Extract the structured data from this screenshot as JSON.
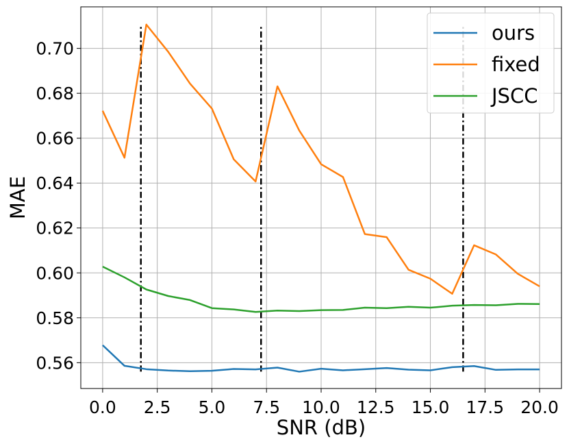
{
  "chart_data": {
    "type": "line",
    "xlabel": "SNR (dB)",
    "ylabel": "MAE",
    "xlim": [
      -1.0,
      21.0
    ],
    "ylim": [
      0.5485,
      0.7185
    ],
    "grid": true,
    "legend_position": "top-right",
    "xticks": [
      0,
      2.5,
      5,
      7.5,
      10,
      12.5,
      15,
      17.5,
      20
    ],
    "xtick_labels": [
      "0.0",
      "2.5",
      "5.0",
      "7.5",
      "10.0",
      "12.5",
      "15.0",
      "17.5",
      "20.0"
    ],
    "yticks": [
      0.56,
      0.58,
      0.6,
      0.62,
      0.64,
      0.66,
      0.68,
      0.7
    ],
    "ytick_labels": [
      "0.56",
      "0.58",
      "0.60",
      "0.62",
      "0.64",
      "0.66",
      "0.68",
      "0.70"
    ],
    "x": [
      0,
      1,
      2,
      3,
      4,
      5,
      6,
      7,
      8,
      9,
      10,
      11,
      12,
      13,
      14,
      15,
      16,
      17,
      18,
      19,
      20
    ],
    "series": [
      {
        "name": "ours",
        "color": "#1f77b4",
        "values": [
          0.5678,
          0.5586,
          0.5571,
          0.5565,
          0.5562,
          0.5564,
          0.5572,
          0.557,
          0.5578,
          0.556,
          0.5573,
          0.5566,
          0.5571,
          0.5576,
          0.5569,
          0.5566,
          0.558,
          0.5585,
          0.5568,
          0.557,
          0.557
        ]
      },
      {
        "name": "fixed",
        "color": "#ff7f0e",
        "values": [
          0.6722,
          0.6513,
          0.7106,
          0.6985,
          0.6843,
          0.6732,
          0.6506,
          0.6407,
          0.6831,
          0.6634,
          0.6484,
          0.6427,
          0.6173,
          0.6159,
          0.6014,
          0.5974,
          0.5907,
          0.6123,
          0.6082,
          0.5996,
          0.594
        ]
      },
      {
        "name": "JSCC",
        "color": "#2ca02c",
        "values": [
          0.6028,
          0.598,
          0.5926,
          0.5897,
          0.5879,
          0.5843,
          0.5837,
          0.5826,
          0.5832,
          0.583,
          0.5834,
          0.5835,
          0.5845,
          0.5843,
          0.5849,
          0.5845,
          0.5854,
          0.5857,
          0.5856,
          0.5862,
          0.5861
        ]
      }
    ],
    "vertical_lines": {
      "style": "dash-dot",
      "color": "#000000",
      "x": [
        1.75,
        7.25,
        16.5
      ],
      "y_range": [
        0.556,
        0.7105
      ]
    }
  }
}
